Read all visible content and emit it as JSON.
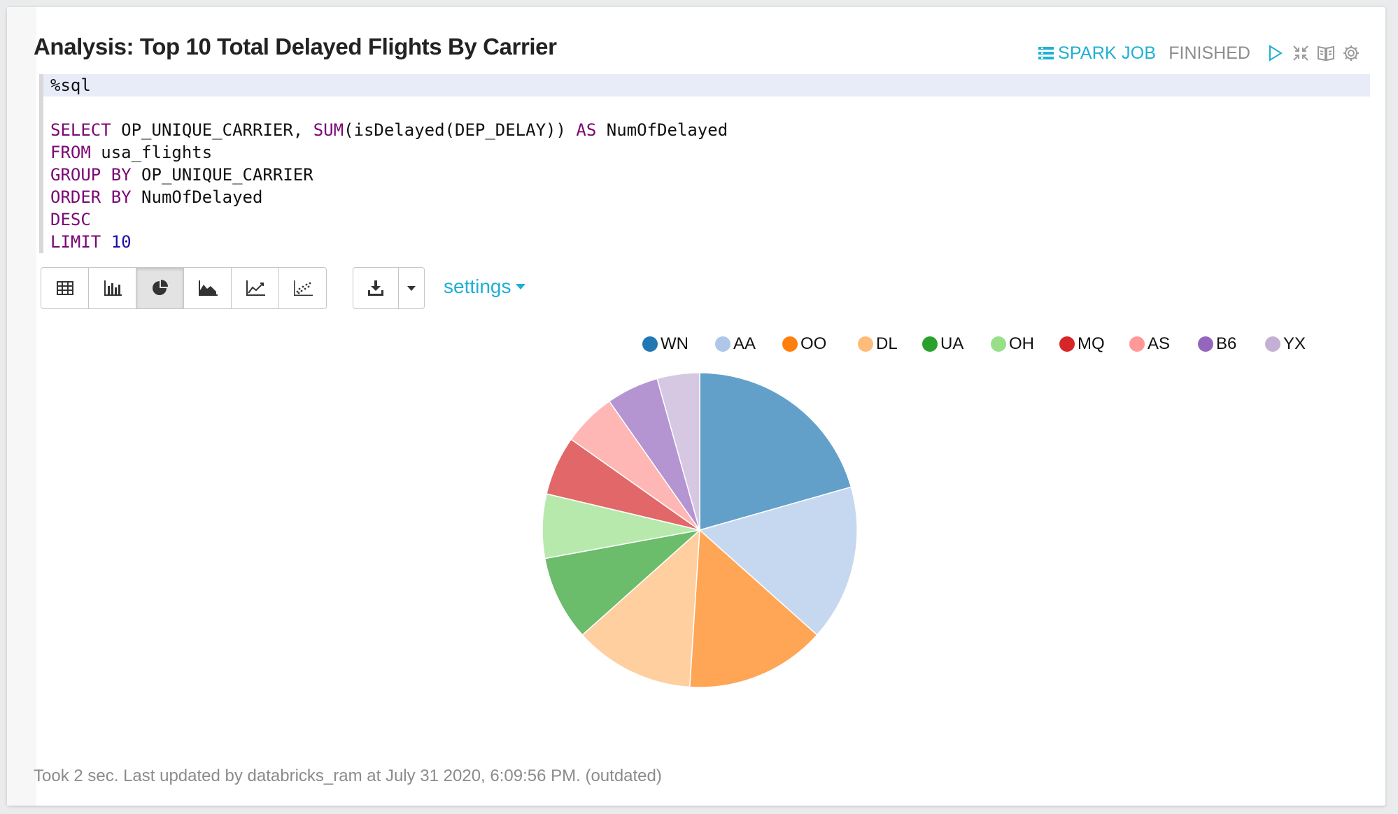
{
  "cell": {
    "title": "Analysis: Top 10 Total Delayed Flights By Carrier",
    "spark_job_label": "SPARK JOB",
    "status": "FINISHED"
  },
  "header_icons": [
    "play-icon",
    "collapse-icon",
    "book-icon",
    "gear-icon"
  ],
  "code": {
    "magic": "%sql",
    "lines": [
      "SELECT OP_UNIQUE_CARRIER, SUM(isDelayed(DEP_DELAY)) AS NumOfDelayed",
      "FROM usa_flights",
      "GROUP BY OP_UNIQUE_CARRIER",
      "ORDER BY NumOfDelayed",
      "DESC",
      "LIMIT 10"
    ]
  },
  "toolbar": {
    "viz_buttons": [
      "table-view",
      "bar-chart",
      "pie-chart",
      "area-chart",
      "line-chart",
      "scatter-chart"
    ],
    "active_viz": "pie-chart",
    "settings_label": "settings"
  },
  "chart_data": {
    "type": "pie",
    "categories": [
      "WN",
      "AA",
      "OO",
      "DL",
      "UA",
      "OH",
      "MQ",
      "AS",
      "B6",
      "YX"
    ],
    "values": [
      20.3,
      15.8,
      14.2,
      12.2,
      8.6,
      6.5,
      6.0,
      5.4,
      5.3,
      4.3
    ],
    "colors": [
      "#1f77b4",
      "#aec7e8",
      "#ff7f0e",
      "#ffbb78",
      "#2ca02c",
      "#98df8a",
      "#d62728",
      "#ff9896",
      "#9467bd",
      "#c5b0d5"
    ],
    "legend_position": "top"
  },
  "footer": {
    "text": "Took 2 sec. Last updated by databricks_ram at July 31 2020, 6:09:56 PM. (outdated)"
  }
}
